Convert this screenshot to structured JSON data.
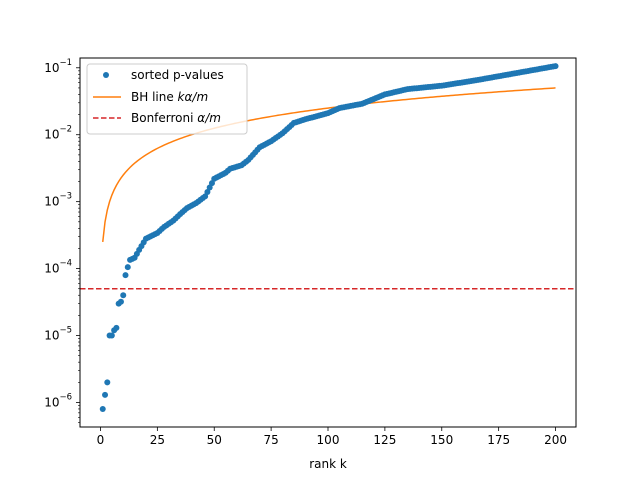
{
  "chart_data": {
    "type": "scatter",
    "title": "",
    "xlabel": "rank k",
    "ylabel": "",
    "xlim": [
      -9,
      209
    ],
    "ylim": [
      4.3e-07,
      0.14
    ],
    "yscale": "log",
    "grid": false,
    "legend_position": "top-left",
    "x_ticks": [
      {
        "value": 0,
        "label": "0"
      },
      {
        "value": 25,
        "label": "25"
      },
      {
        "value": 50,
        "label": "50"
      },
      {
        "value": 75,
        "label": "75"
      },
      {
        "value": 100,
        "label": "100"
      },
      {
        "value": 125,
        "label": "125"
      },
      {
        "value": 150,
        "label": "150"
      },
      {
        "value": 175,
        "label": "175"
      },
      {
        "value": 200,
        "label": "200"
      }
    ],
    "y_ticks": [
      {
        "value": 1e-06,
        "base": "10",
        "exp": "−6"
      },
      {
        "value": 1e-05,
        "base": "10",
        "exp": "−5"
      },
      {
        "value": 0.0001,
        "base": "10",
        "exp": "−4"
      },
      {
        "value": 0.001,
        "base": "10",
        "exp": "−3"
      },
      {
        "value": 0.01,
        "base": "10",
        "exp": "−2"
      },
      {
        "value": 0.1,
        "base": "10",
        "exp": "−1"
      }
    ],
    "series": [
      {
        "name": "sorted p-values",
        "kind": "points",
        "color": "#1f77b4",
        "n": 200,
        "anchors": [
          [
            1,
            8e-07
          ],
          [
            2,
            1.3e-06
          ],
          [
            3,
            2e-06
          ],
          [
            4,
            1e-05
          ],
          [
            5,
            1e-05
          ],
          [
            6,
            1.2e-05
          ],
          [
            7,
            1.3e-05
          ],
          [
            8,
            3e-05
          ],
          [
            9,
            3.2e-05
          ],
          [
            10,
            4e-05
          ],
          [
            11,
            8e-05
          ],
          [
            12,
            0.000105
          ],
          [
            13,
            0.000135
          ],
          [
            15,
            0.000145
          ],
          [
            17,
            0.00019
          ],
          [
            20,
            0.00028
          ],
          [
            25,
            0.00034
          ],
          [
            28,
            0.00042
          ],
          [
            32,
            0.00052
          ],
          [
            35,
            0.00065
          ],
          [
            38,
            0.0008
          ],
          [
            42,
            0.00095
          ],
          [
            46,
            0.0012
          ],
          [
            50,
            0.0022
          ],
          [
            55,
            0.0027
          ],
          [
            57,
            0.0031
          ],
          [
            62,
            0.0035
          ],
          [
            65,
            0.0042
          ],
          [
            70,
            0.0065
          ],
          [
            75,
            0.008
          ],
          [
            80,
            0.0105
          ],
          [
            85,
            0.015
          ],
          [
            90,
            0.017
          ],
          [
            100,
            0.021
          ],
          [
            105,
            0.025
          ],
          [
            115,
            0.029
          ],
          [
            125,
            0.04
          ],
          [
            135,
            0.048
          ],
          [
            150,
            0.054
          ],
          [
            165,
            0.065
          ],
          [
            185,
            0.086
          ],
          [
            200,
            0.106
          ]
        ]
      },
      {
        "name": "BH line ",
        "name_math": "kα/m",
        "kind": "line",
        "color": "#ff7f0e",
        "alpha": 0.05,
        "m": 200
      },
      {
        "name": "Bonferroni ",
        "name_math": "α/m",
        "kind": "hline",
        "color": "#d62728",
        "value": 5e-05
      }
    ]
  }
}
